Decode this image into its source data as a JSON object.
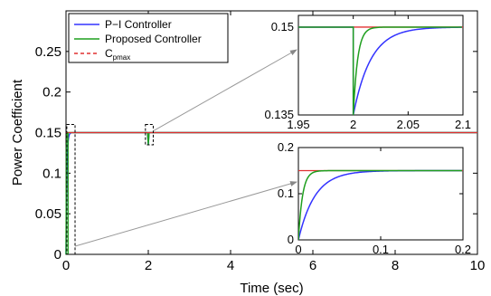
{
  "chart_data": {
    "type": "line",
    "xlabel": "Time (sec)",
    "ylabel": "Power Coefficient",
    "xlim": [
      0,
      10
    ],
    "ylim": [
      0,
      0.3
    ],
    "xticks": [
      "0",
      "2",
      "4",
      "6",
      "8",
      "10"
    ],
    "yticks": [
      "0",
      "0.05",
      "0.1",
      "0.15",
      "0.2",
      "0.25"
    ],
    "legend": {
      "placement": "top-left"
    },
    "colors": {
      "pi": "#3333ff",
      "proposed": "#1f9f1f",
      "cpmax": "#e03030"
    },
    "series": [
      {
        "name": "P−I Controller"
      },
      {
        "name": "Proposed Controller"
      },
      {
        "name": "C",
        "sub": "pmax"
      }
    ],
    "cpmax_value": 0.15,
    "pi_time_constant": 0.02,
    "proposed_time_constant": 0.005,
    "insets": [
      {
        "location": "top-right",
        "xlim": [
          1.95,
          2.1
        ],
        "ylim": [
          0.135,
          0.152
        ],
        "xticks": [
          "1.95",
          "2",
          "2.05",
          "2.1"
        ],
        "yticks": [
          "0.135",
          "0.15"
        ],
        "dip_time": 2,
        "dip_value": 0.135
      },
      {
        "location": "bottom-right",
        "xlim": [
          0,
          0.2
        ],
        "ylim": [
          0,
          0.2
        ],
        "xticks": [
          "0",
          "0.1",
          "0.2"
        ],
        "yticks": [
          "0",
          "0.1",
          "0.2"
        ]
      }
    ]
  }
}
